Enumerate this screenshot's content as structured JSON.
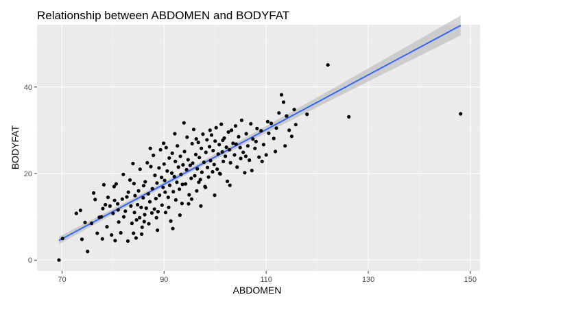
{
  "chart_data": {
    "type": "scatter",
    "title": "Relationship between ABDOMEN and BODYFAT",
    "xlabel": "ABDOMEN",
    "ylabel": "BODYFAT",
    "xlim": [
      65.1,
      151.9
    ],
    "ylim": [
      -2.5,
      54.4
    ],
    "x_ticks": [
      70,
      90,
      110,
      130,
      150
    ],
    "y_ticks": [
      0,
      20,
      40
    ],
    "grid": true,
    "colors": {
      "panel": "#ebebeb",
      "grid_major": "#ffffff",
      "grid_minor": "#f5f5f5",
      "point": "#000000",
      "fit_line": "#3366ff",
      "ribbon": "#b3b3b3"
    },
    "regression": {
      "method": "lm",
      "intercept": -39.28,
      "slope": 0.6313,
      "x_range": [
        69.4,
        148.1
      ],
      "ci_halfwidth_at_ends": 1.7,
      "ci_halfwidth_at_center": 0.55,
      "center_x": 92.6
    },
    "points": [
      [
        69.4,
        0.0
      ],
      [
        70.1,
        5.0
      ],
      [
        72.8,
        10.8
      ],
      [
        73.6,
        11.5
      ],
      [
        73.9,
        4.8
      ],
      [
        74.5,
        8.7
      ],
      [
        75.0,
        2.0
      ],
      [
        75.8,
        8.5
      ],
      [
        76.2,
        15.5
      ],
      [
        76.5,
        14.0
      ],
      [
        76.9,
        6.2
      ],
      [
        77.3,
        9.9
      ],
      [
        77.7,
        10.0
      ],
      [
        77.9,
        4.9
      ],
      [
        78.2,
        17.4
      ],
      [
        78.5,
        12.8
      ],
      [
        78.8,
        7.7
      ],
      [
        79.4,
        12.5
      ],
      [
        79.7,
        5.8
      ],
      [
        80.0,
        10.8
      ],
      [
        80.2,
        17.0
      ],
      [
        80.4,
        4.5
      ],
      [
        80.6,
        17.6
      ],
      [
        80.9,
        13.0
      ],
      [
        81.1,
        8.8
      ],
      [
        81.5,
        6.3
      ],
      [
        81.8,
        14.1
      ],
      [
        82.1,
        10.0
      ],
      [
        82.4,
        11.3
      ],
      [
        82.7,
        14.6
      ],
      [
        82.9,
        4.4
      ],
      [
        83.3,
        18.5
      ],
      [
        83.5,
        12.5
      ],
      [
        83.7,
        8.5
      ],
      [
        84.0,
        6.2
      ],
      [
        84.2,
        11.0
      ],
      [
        84.3,
        14.9
      ],
      [
        84.5,
        5.1
      ],
      [
        84.6,
        9.3
      ],
      [
        84.8,
        12.8
      ],
      [
        85.0,
        16.0
      ],
      [
        85.2,
        9.8
      ],
      [
        85.3,
        21.0
      ],
      [
        85.5,
        12.2
      ],
      [
        85.7,
        7.6
      ],
      [
        85.9,
        14.4
      ],
      [
        86.0,
        17.2
      ],
      [
        86.2,
        10.5
      ],
      [
        86.3,
        18.1
      ],
      [
        86.5,
        12.0
      ],
      [
        86.7,
        22.5
      ],
      [
        86.9,
        15.3
      ],
      [
        87.0,
        8.4
      ],
      [
        87.2,
        13.5
      ],
      [
        87.4,
        21.6
      ],
      [
        87.6,
        10.9
      ],
      [
        87.7,
        16.5
      ],
      [
        87.9,
        24.2
      ],
      [
        88.1,
        11.8
      ],
      [
        88.2,
        19.6
      ],
      [
        88.4,
        14.2
      ],
      [
        88.6,
        17.8
      ],
      [
        88.8,
        11.2
      ],
      [
        89.0,
        21.3
      ],
      [
        89.1,
        15.0
      ],
      [
        89.3,
        25.5
      ],
      [
        89.5,
        19.1
      ],
      [
        89.6,
        12.7
      ],
      [
        89.8,
        16.8
      ],
      [
        90.0,
        22.2
      ],
      [
        90.1,
        18.4
      ],
      [
        90.3,
        11.0
      ],
      [
        90.4,
        26.0
      ],
      [
        90.6,
        20.6
      ],
      [
        90.8,
        14.5
      ],
      [
        91.0,
        23.6
      ],
      [
        91.1,
        17.3
      ],
      [
        91.3,
        9.0
      ],
      [
        91.5,
        20.1
      ],
      [
        91.6,
        24.7
      ],
      [
        91.8,
        15.8
      ],
      [
        92.0,
        19.3
      ],
      [
        92.2,
        22.8
      ],
      [
        92.3,
        13.9
      ],
      [
        92.5,
        18.0
      ],
      [
        92.6,
        26.4
      ],
      [
        92.8,
        21.5
      ],
      [
        93.0,
        16.4
      ],
      [
        93.2,
        24.0
      ],
      [
        93.3,
        19.8
      ],
      [
        93.5,
        13.1
      ],
      [
        93.7,
        22.0
      ],
      [
        93.9,
        31.7
      ],
      [
        94.0,
        25.1
      ],
      [
        94.2,
        17.6
      ],
      [
        94.4,
        20.9
      ],
      [
        94.5,
        28.4
      ],
      [
        94.7,
        23.2
      ],
      [
        94.9,
        15.1
      ],
      [
        95.1,
        21.9
      ],
      [
        95.3,
        18.9
      ],
      [
        95.5,
        26.9
      ],
      [
        95.6,
        22.4
      ],
      [
        95.8,
        30.2
      ],
      [
        96.0,
        19.5
      ],
      [
        96.2,
        24.4
      ],
      [
        96.4,
        16.0
      ],
      [
        96.5,
        21.1
      ],
      [
        96.7,
        27.2
      ],
      [
        96.9,
        23.7
      ],
      [
        97.1,
        18.6
      ],
      [
        97.3,
        25.8
      ],
      [
        97.4,
        20.3
      ],
      [
        97.6,
        29.1
      ],
      [
        97.8,
        22.6
      ],
      [
        98.0,
        17.0
      ],
      [
        98.2,
        24.9
      ],
      [
        98.4,
        27.8
      ],
      [
        98.5,
        21.4
      ],
      [
        98.7,
        19.2
      ],
      [
        98.9,
        26.2
      ],
      [
        99.1,
        23.0
      ],
      [
        99.3,
        28.9
      ],
      [
        99.5,
        20.4
      ],
      [
        99.6,
        25.3
      ],
      [
        99.8,
        22.1
      ],
      [
        100.0,
        27.5
      ],
      [
        100.2,
        30.6
      ],
      [
        100.4,
        21.0
      ],
      [
        100.6,
        24.5
      ],
      [
        100.8,
        26.7
      ],
      [
        101.0,
        19.9
      ],
      [
        101.2,
        31.4
      ],
      [
        101.4,
        25.0
      ],
      [
        101.6,
        22.8
      ],
      [
        101.8,
        28.2
      ],
      [
        102.0,
        24.0
      ],
      [
        102.2,
        26.1
      ],
      [
        102.4,
        18.2
      ],
      [
        102.6,
        29.6
      ],
      [
        102.8,
        25.5
      ],
      [
        103.0,
        22.5
      ],
      [
        103.2,
        30.0
      ],
      [
        103.5,
        27.0
      ],
      [
        103.8,
        24.3
      ],
      [
        104.0,
        31.0
      ],
      [
        104.3,
        21.5
      ],
      [
        104.6,
        28.5
      ],
      [
        104.9,
        26.0
      ],
      [
        105.2,
        32.3
      ],
      [
        105.5,
        24.9
      ],
      [
        105.8,
        20.2
      ],
      [
        106.1,
        29.2
      ],
      [
        106.4,
        26.4
      ],
      [
        106.7,
        23.1
      ],
      [
        107.0,
        31.5
      ],
      [
        107.4,
        28.0
      ],
      [
        107.8,
        25.8
      ],
      [
        108.2,
        30.4
      ],
      [
        108.6,
        23.8
      ],
      [
        109.0,
        29.9
      ],
      [
        109.5,
        26.7
      ],
      [
        110.0,
        24.3
      ],
      [
        110.5,
        29.3
      ],
      [
        111.0,
        31.6
      ],
      [
        111.5,
        28.1
      ],
      [
        112.0,
        30.5
      ],
      [
        112.5,
        34.0
      ],
      [
        113.0,
        38.2
      ],
      [
        113.4,
        36.5
      ],
      [
        113.7,
        26.4
      ],
      [
        114.0,
        33.3
      ],
      [
        114.5,
        30.0
      ],
      [
        115.0,
        28.6
      ],
      [
        115.5,
        34.8
      ],
      [
        115.8,
        31.3
      ],
      [
        118.0,
        33.7
      ],
      [
        122.1,
        45.1
      ],
      [
        126.2,
        33.1
      ],
      [
        148.1,
        33.8
      ],
      [
        79.0,
        14.5
      ],
      [
        81.0,
        11.6
      ],
      [
        83.0,
        15.7
      ],
      [
        86.1,
        8.9
      ],
      [
        88.7,
        6.9
      ],
      [
        90.9,
        12.2
      ],
      [
        93.1,
        10.4
      ],
      [
        95.4,
        14.1
      ],
      [
        97.2,
        12.5
      ],
      [
        99.9,
        15.0
      ],
      [
        87.3,
        25.8
      ],
      [
        89.9,
        27.0
      ],
      [
        92.1,
        29.2
      ],
      [
        84.1,
        17.7
      ],
      [
        82.0,
        19.8
      ],
      [
        80.3,
        13.8
      ],
      [
        78.0,
        11.9
      ],
      [
        96.8,
        18.0
      ],
      [
        98.1,
        16.8
      ],
      [
        100.9,
        20.0
      ],
      [
        102.9,
        17.3
      ],
      [
        105.0,
        23.5
      ],
      [
        107.2,
        20.7
      ],
      [
        109.2,
        22.8
      ],
      [
        111.8,
        25.1
      ],
      [
        94.8,
        13.0
      ],
      [
        91.7,
        7.3
      ],
      [
        85.6,
        6.0
      ],
      [
        83.9,
        22.3
      ],
      [
        88.5,
        9.8
      ],
      [
        90.2,
        15.7
      ],
      [
        93.6,
        17.5
      ],
      [
        96.3,
        28.0
      ],
      [
        99.0,
        30.0
      ],
      [
        101.5,
        27.7
      ],
      [
        104.1,
        26.8
      ],
      [
        106.0,
        24.0
      ],
      [
        108.0,
        27.4
      ],
      [
        110.3,
        32.0
      ]
    ]
  }
}
